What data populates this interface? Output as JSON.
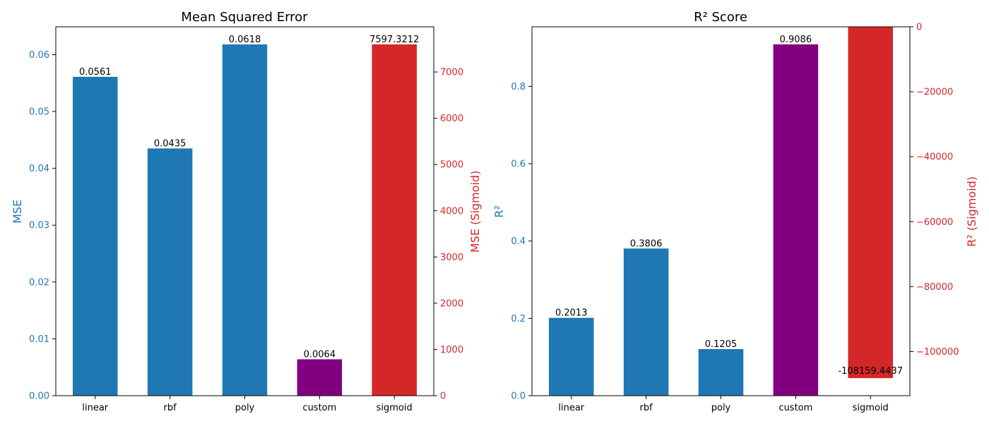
{
  "colors": {
    "primary_axis": "#1f77b4",
    "secondary_axis": "#d62728",
    "bar_default": "#1f77b4",
    "bar_custom": "#800080",
    "bar_sigmoid": "#d62728",
    "text": "#000000"
  },
  "chart_data": [
    {
      "type": "bar",
      "title": "Mean Squared Error",
      "categories": [
        "linear",
        "rbf",
        "poly",
        "custom",
        "sigmoid"
      ],
      "series": [
        {
          "values": [
            0.0561,
            0.0435,
            0.0618,
            0.0064,
            null
          ]
        },
        {
          "values": [
            null,
            null,
            null,
            null,
            7597.3212
          ]
        }
      ],
      "data_labels": [
        "0.0561",
        "0.0435",
        "0.0618",
        "0.0064",
        "7597.3212"
      ],
      "ylabel": "MSE",
      "ylim": [
        0,
        0.0649
      ],
      "yticks": [
        "0.00",
        "0.01",
        "0.02",
        "0.03",
        "0.04",
        "0.05",
        "0.06"
      ],
      "y2label": "MSE (Sigmoid)",
      "y2lim": [
        0,
        7977.19
      ],
      "y2ticks": [
        "0",
        "1000",
        "2000",
        "3000",
        "4000",
        "5000",
        "6000",
        "7000"
      ],
      "grid": false
    },
    {
      "type": "bar",
      "title": "R² Score",
      "categories": [
        "linear",
        "rbf",
        "poly",
        "custom",
        "sigmoid"
      ],
      "series": [
        {
          "values": [
            0.2013,
            0.3806,
            0.1205,
            0.9086,
            null
          ]
        },
        {
          "values": [
            null,
            null,
            null,
            null,
            -108159.4437
          ]
        }
      ],
      "data_labels": [
        "0.2013",
        "0.3806",
        "0.1205",
        "0.9086",
        "-108159.4437"
      ],
      "ylabel": "R²",
      "ylim": [
        0,
        0.954
      ],
      "yticks": [
        "0.0",
        "0.2",
        "0.4",
        "0.6",
        "0.8"
      ],
      "y2label": "R² (Sigmoid)",
      "y2lim": [
        -113567.4,
        0
      ],
      "y2ticks": [
        "0",
        "−20000",
        "−40000",
        "−60000",
        "−80000",
        "−100000"
      ],
      "grid": false
    }
  ]
}
